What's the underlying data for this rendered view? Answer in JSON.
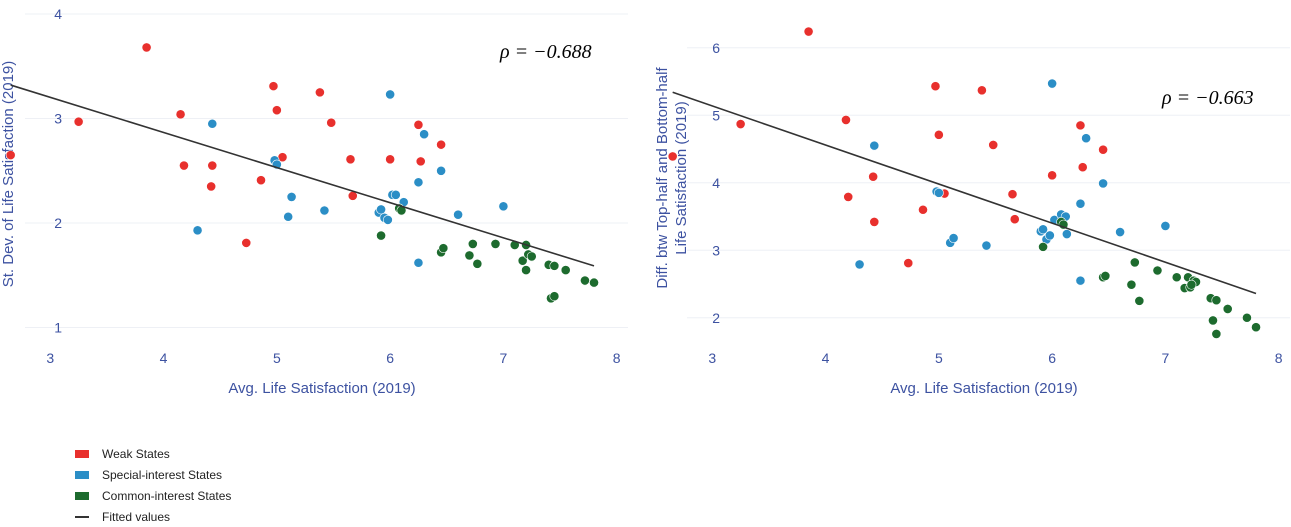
{
  "colors": {
    "weak": "#e8302d",
    "special": "#2b8ec6",
    "common": "#1d6b2e",
    "fit": "#333333",
    "axis_text": "#3d52a1"
  },
  "legend": {
    "weak": "Weak States",
    "special": "Special-interest States",
    "common": "Common-interest States",
    "fit": "Fitted values"
  },
  "chart_data": [
    {
      "type": "scatter",
      "title": "",
      "xlabel": "Avg. Life Satisfaction (2019)",
      "ylabel": "St. Dev. of Life Satisfaction (2019)",
      "xlim": [
        2.6,
        8.1
      ],
      "ylim": [
        0.9,
        4.0
      ],
      "xticks": [
        3,
        4,
        5,
        6,
        7,
        8
      ],
      "yticks": [
        1,
        2,
        3,
        4
      ],
      "annotation": "ρ = −0.688",
      "fit_line": [
        [
          2.65,
          3.32
        ],
        [
          7.8,
          1.59
        ]
      ],
      "series": [
        {
          "name": "Weak States",
          "key": "weak",
          "points": [
            [
              2.65,
              2.65
            ],
            [
              3.25,
              2.97
            ],
            [
              3.85,
              3.68
            ],
            [
              4.15,
              3.04
            ],
            [
              4.18,
              2.55
            ],
            [
              4.42,
              2.35
            ],
            [
              4.43,
              2.55
            ],
            [
              4.73,
              1.81
            ],
            [
              4.86,
              2.41
            ],
            [
              4.97,
              3.31
            ],
            [
              5.0,
              3.08
            ],
            [
              5.05,
              2.63
            ],
            [
              5.38,
              3.25
            ],
            [
              5.48,
              2.96
            ],
            [
              5.65,
              2.61
            ],
            [
              5.67,
              2.26
            ],
            [
              6.0,
              2.61
            ],
            [
              6.25,
              2.94
            ],
            [
              6.27,
              2.59
            ],
            [
              6.45,
              2.75
            ]
          ]
        },
        {
          "name": "Special-interest States",
          "key": "special",
          "points": [
            [
              4.3,
              1.93
            ],
            [
              4.43,
              2.95
            ],
            [
              4.98,
              2.6
            ],
            [
              5.0,
              2.56
            ],
            [
              5.1,
              2.06
            ],
            [
              5.13,
              2.25
            ],
            [
              5.42,
              2.12
            ],
            [
              5.9,
              2.1
            ],
            [
              5.92,
              2.13
            ],
            [
              5.95,
              2.05
            ],
            [
              5.98,
              2.03
            ],
            [
              6.0,
              3.23
            ],
            [
              6.02,
              2.27
            ],
            [
              6.05,
              2.27
            ],
            [
              6.1,
              2.13
            ],
            [
              6.12,
              2.2
            ],
            [
              6.25,
              2.39
            ],
            [
              6.25,
              1.62
            ],
            [
              6.3,
              2.85
            ],
            [
              6.45,
              2.5
            ],
            [
              6.6,
              2.08
            ],
            [
              7.0,
              2.16
            ]
          ]
        },
        {
          "name": "Common-interest States",
          "key": "common",
          "points": [
            [
              5.92,
              1.88
            ],
            [
              6.08,
              2.14
            ],
            [
              6.1,
              2.12
            ],
            [
              6.45,
              1.72
            ],
            [
              6.47,
              1.76
            ],
            [
              6.7,
              1.69
            ],
            [
              6.73,
              1.8
            ],
            [
              6.77,
              1.61
            ],
            [
              6.93,
              1.8
            ],
            [
              7.1,
              1.79
            ],
            [
              7.17,
              1.64
            ],
            [
              7.2,
              1.79
            ],
            [
              7.22,
              1.7
            ],
            [
              7.25,
              1.68
            ],
            [
              7.2,
              1.55
            ],
            [
              7.4,
              1.6
            ],
            [
              7.45,
              1.59
            ],
            [
              7.42,
              1.28
            ],
            [
              7.45,
              1.3
            ],
            [
              7.55,
              1.55
            ],
            [
              7.72,
              1.45
            ],
            [
              7.8,
              1.43
            ]
          ]
        }
      ]
    },
    {
      "type": "scatter",
      "title": "",
      "xlabel": "Avg. Life Satisfaction (2019)",
      "ylabel_line1": "Diff. btw Top-half and Bottom-half",
      "ylabel_line2": "Life Satisfaction (2019)",
      "xlim": [
        2.6,
        8.1
      ],
      "ylim": [
        1.7,
        6.5
      ],
      "xticks": [
        3,
        4,
        5,
        6,
        7,
        8
      ],
      "yticks": [
        2,
        3,
        4,
        5,
        6
      ],
      "annotation": "ρ = −0.663",
      "fit_line": [
        [
          2.65,
          5.34
        ],
        [
          7.8,
          2.36
        ]
      ],
      "series": [
        {
          "name": "Weak States",
          "key": "weak",
          "points": [
            [
              2.65,
              4.39
            ],
            [
              3.25,
              4.87
            ],
            [
              3.85,
              6.24
            ],
            [
              4.18,
              4.93
            ],
            [
              4.2,
              3.79
            ],
            [
              4.42,
              4.09
            ],
            [
              4.43,
              3.42
            ],
            [
              4.73,
              2.81
            ],
            [
              4.86,
              3.6
            ],
            [
              4.97,
              5.43
            ],
            [
              5.0,
              4.71
            ],
            [
              5.05,
              3.84
            ],
            [
              5.38,
              5.37
            ],
            [
              5.48,
              4.56
            ],
            [
              5.65,
              3.83
            ],
            [
              5.67,
              3.46
            ],
            [
              6.0,
              4.11
            ],
            [
              6.25,
              4.85
            ],
            [
              6.27,
              4.23
            ],
            [
              6.45,
              4.49
            ]
          ]
        },
        {
          "name": "Special-interest States",
          "key": "special",
          "points": [
            [
              4.3,
              2.79
            ],
            [
              4.43,
              4.55
            ],
            [
              4.98,
              3.87
            ],
            [
              5.0,
              3.85
            ],
            [
              5.1,
              3.11
            ],
            [
              5.13,
              3.18
            ],
            [
              5.42,
              3.07
            ],
            [
              5.9,
              3.28
            ],
            [
              5.92,
              3.31
            ],
            [
              5.95,
              3.16
            ],
            [
              5.98,
              3.22
            ],
            [
              6.0,
              5.47
            ],
            [
              6.02,
              3.45
            ],
            [
              6.08,
              3.53
            ],
            [
              6.12,
              3.5
            ],
            [
              6.13,
              3.24
            ],
            [
              6.25,
              3.69
            ],
            [
              6.25,
              2.55
            ],
            [
              6.3,
              4.66
            ],
            [
              6.45,
              3.99
            ],
            [
              6.6,
              3.27
            ],
            [
              7.0,
              3.36
            ]
          ]
        },
        {
          "name": "Common-interest States",
          "key": "common",
          "points": [
            [
              5.92,
              3.05
            ],
            [
              6.08,
              3.42
            ],
            [
              6.1,
              3.38
            ],
            [
              6.45,
              2.6
            ],
            [
              6.47,
              2.62
            ],
            [
              6.7,
              2.49
            ],
            [
              6.73,
              2.82
            ],
            [
              6.77,
              2.25
            ],
            [
              6.93,
              2.7
            ],
            [
              7.1,
              2.6
            ],
            [
              7.17,
              2.44
            ],
            [
              7.2,
              2.6
            ],
            [
              7.22,
              2.45
            ],
            [
              7.25,
              2.55
            ],
            [
              7.27,
              2.53
            ],
            [
              7.23,
              2.49
            ],
            [
              7.4,
              2.29
            ],
            [
              7.45,
              2.26
            ],
            [
              7.42,
              1.96
            ],
            [
              7.45,
              1.76
            ],
            [
              7.55,
              2.13
            ],
            [
              7.72,
              2.0
            ],
            [
              7.8,
              1.86
            ]
          ]
        }
      ]
    }
  ]
}
